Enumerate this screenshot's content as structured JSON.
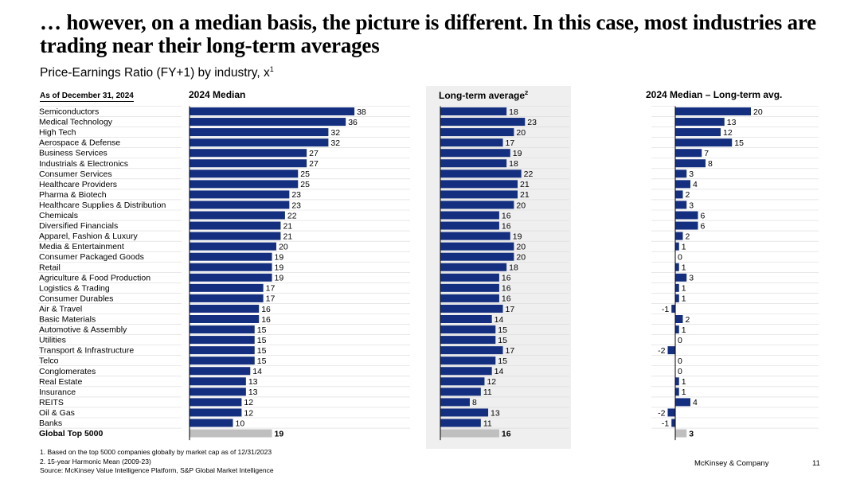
{
  "title": "… however, on a median basis, the picture is different. In this case, most industries are trading near their long-term averages",
  "subtitle": "Price-Earnings Ratio (FY+1) by industry, x",
  "subtitle_sup": "1",
  "as_of": "As of December 31, 2024",
  "columns": {
    "median": "2024 Median",
    "longterm": "Long-term average",
    "longterm_sup": "2",
    "diff": "2024 Median – Long-term avg."
  },
  "colors": {
    "bar": "#142f7f",
    "total_bar": "#bfbfbf",
    "shade": "#efefef"
  },
  "chart_data": {
    "type": "bar",
    "orientation": "horizontal",
    "categories": [
      "Semiconductors",
      "Medical Technology",
      "High Tech",
      "Aerospace & Defense",
      "Business Services",
      "Industrials & Electronics",
      "Consumer Services",
      "Healthcare Providers",
      "Pharma & Biotech",
      "Healthcare Supplies & Distribution",
      "Chemicals",
      "Diversified Financials",
      "Apparel, Fashion & Luxury",
      "Media & Entertainment",
      "Consumer Packaged Goods",
      "Retail",
      "Agriculture & Food Production",
      "Logistics & Trading",
      "Consumer Durables",
      "Air & Travel",
      "Basic Materials",
      "Automotive & Assembly",
      "Utilities",
      "Transport & Infrastructure",
      "Telco",
      "Conglomerates",
      "Real Estate",
      "Insurance",
      "REITS",
      "Oil & Gas",
      "Banks"
    ],
    "series": [
      {
        "name": "2024 Median",
        "values": [
          38,
          36,
          32,
          32,
          27,
          27,
          25,
          25,
          23,
          23,
          22,
          21,
          21,
          20,
          19,
          19,
          19,
          17,
          17,
          16,
          16,
          15,
          15,
          15,
          15,
          14,
          13,
          13,
          12,
          12,
          10
        ]
      },
      {
        "name": "Long-term average",
        "values": [
          18,
          23,
          20,
          17,
          19,
          18,
          22,
          21,
          21,
          20,
          16,
          16,
          19,
          20,
          20,
          18,
          16,
          16,
          16,
          17,
          14,
          15,
          15,
          17,
          15,
          14,
          12,
          11,
          8,
          13,
          11
        ]
      },
      {
        "name": "2024 Median – Long-term avg.",
        "values": [
          20,
          13,
          12,
          15,
          7,
          8,
          3,
          4,
          2,
          3,
          6,
          6,
          2,
          1,
          0,
          1,
          3,
          1,
          1,
          -1,
          2,
          1,
          0,
          -2,
          0,
          0,
          1,
          1,
          4,
          -2,
          -1
        ]
      }
    ],
    "total": {
      "label": "Global Top 5000",
      "values": [
        19,
        16,
        3
      ]
    }
  },
  "footnotes": [
    "1. Based on the top 5000 companies globally by market cap as of 12/31/2023",
    "2. 15-year Harmonic Mean (2009-23)",
    "Source: McKinsey Value Intelligence Platform, S&P Global Market Intelligence"
  ],
  "brand": "McKinsey & Company",
  "page_number": "11"
}
